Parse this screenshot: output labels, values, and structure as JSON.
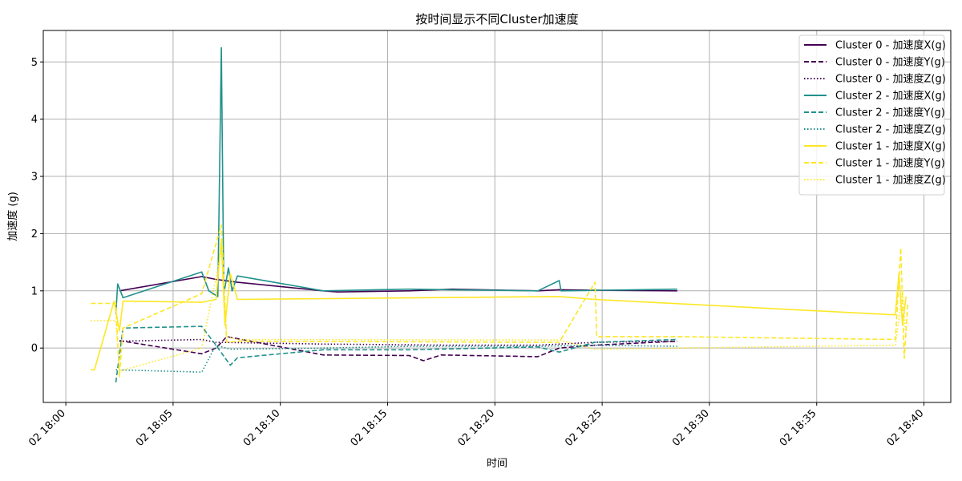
{
  "chart_data": {
    "type": "line",
    "title": "按时间显示不同Cluster加速度",
    "xlabel": "时间",
    "ylabel": "加速度 (g)",
    "xlim": [
      "02 18:00",
      "02 18:40"
    ],
    "ylim": [
      -0.95,
      5.55
    ],
    "x_ticks": [
      "02 18:00",
      "02 18:05",
      "02 18:10",
      "02 18:15",
      "02 18:20",
      "02 18:25",
      "02 18:30",
      "02 18:35",
      "02 18:40"
    ],
    "y_ticks": [
      0,
      1,
      2,
      3,
      4,
      5
    ],
    "grid": true,
    "legend_position": "top-right",
    "colors": {
      "cluster0": "#440154",
      "cluster2": "#21918c",
      "cluster1": "#fde725"
    },
    "series": [
      {
        "name": "Cluster 0 - 加速度X(g)",
        "color": "#440154",
        "dash": "solid",
        "points": [
          [
            "02 18:02:30",
            1.0
          ],
          [
            "02 18:06:20",
            1.25
          ],
          [
            "02 18:07:00",
            1.2
          ],
          [
            "02 18:08:00",
            1.15
          ],
          [
            "02 18:12:00",
            1.0
          ],
          [
            "02 18:12:40",
            0.98
          ],
          [
            "02 18:16:00",
            1.0
          ],
          [
            "02 18:18:00",
            1.03
          ],
          [
            "02 18:22:00",
            1.0
          ],
          [
            "02 18:23:00",
            1.02
          ],
          [
            "02 18:24:40",
            1.01
          ],
          [
            "02 18:28:30",
            1.0
          ]
        ]
      },
      {
        "name": "Cluster 0 - 加速度Y(g)",
        "color": "#440154",
        "dash": "dashed",
        "points": [
          [
            "02 18:02:30",
            0.13
          ],
          [
            "02 18:06:20",
            -0.1
          ],
          [
            "02 18:07:00",
            0.0
          ],
          [
            "02 18:07:30",
            0.2
          ],
          [
            "02 18:12:00",
            -0.12
          ],
          [
            "02 18:16:00",
            -0.13
          ],
          [
            "02 18:16:40",
            -0.22
          ],
          [
            "02 18:17:30",
            -0.12
          ],
          [
            "02 18:22:00",
            -0.15
          ],
          [
            "02 18:23:00",
            0.0
          ],
          [
            "02 18:24:40",
            0.05
          ],
          [
            "02 18:28:30",
            0.12
          ]
        ]
      },
      {
        "name": "Cluster 0 - 加速度Z(g)",
        "color": "#440154",
        "dash": "dotted",
        "points": [
          [
            "02 18:02:30",
            0.12
          ],
          [
            "02 18:06:20",
            0.15
          ],
          [
            "02 18:07:00",
            0.1
          ],
          [
            "02 18:12:00",
            0.07
          ],
          [
            "02 18:18:00",
            0.05
          ],
          [
            "02 18:22:00",
            0.05
          ],
          [
            "02 18:24:40",
            0.1
          ],
          [
            "02 18:28:30",
            0.12
          ]
        ]
      },
      {
        "name": "Cluster 2 - 加速度X(g)",
        "color": "#21918c",
        "dash": "solid",
        "points": [
          [
            "02 18:02:20",
            0.6
          ],
          [
            "02 18:02:25",
            1.12
          ],
          [
            "02 18:02:40",
            0.88
          ],
          [
            "02 18:06:20",
            1.33
          ],
          [
            "02 18:06:40",
            1.0
          ],
          [
            "02 18:07:05",
            0.9
          ],
          [
            "02 18:07:15",
            5.25
          ],
          [
            "02 18:07:22",
            0.95
          ],
          [
            "02 18:07:35",
            1.4
          ],
          [
            "02 18:07:45",
            1.0
          ],
          [
            "02 18:08:00",
            1.26
          ],
          [
            "02 18:12:00",
            1.0
          ],
          [
            "02 18:16:00",
            1.03
          ],
          [
            "02 18:18:00",
            1.02
          ],
          [
            "02 18:22:00",
            1.0
          ],
          [
            "02 18:23:00",
            1.18
          ],
          [
            "02 18:23:05",
            1.0
          ],
          [
            "02 18:28:30",
            1.03
          ]
        ]
      },
      {
        "name": "Cluster 2 - 加速度Y(g)",
        "color": "#21918c",
        "dash": "dashed",
        "points": [
          [
            "02 18:02:20",
            -0.6
          ],
          [
            "02 18:02:40",
            0.35
          ],
          [
            "02 18:06:20",
            0.38
          ],
          [
            "02 18:07:00",
            0.05
          ],
          [
            "02 18:07:40",
            -0.3
          ],
          [
            "02 18:08:00",
            -0.17
          ],
          [
            "02 18:12:00",
            -0.03
          ],
          [
            "02 18:16:00",
            -0.03
          ],
          [
            "02 18:22:00",
            0.02
          ],
          [
            "02 18:23:00",
            -0.07
          ],
          [
            "02 18:24:40",
            0.1
          ],
          [
            "02 18:28:30",
            0.15
          ]
        ]
      },
      {
        "name": "Cluster 2 - 加速度Z(g)",
        "color": "#21918c",
        "dash": "dotted",
        "points": [
          [
            "02 18:02:20",
            -0.38
          ],
          [
            "02 18:06:20",
            -0.42
          ],
          [
            "02 18:07:00",
            0.05
          ],
          [
            "02 18:07:40",
            -0.02
          ],
          [
            "02 18:12:00",
            0.0
          ],
          [
            "02 18:16:00",
            0.03
          ],
          [
            "02 18:22:00",
            0.03
          ],
          [
            "02 18:24:40",
            0.05
          ],
          [
            "02 18:28:30",
            0.03
          ]
        ]
      },
      {
        "name": "Cluster 1 - 加速度X(g)",
        "color": "#fde725",
        "dash": "solid",
        "points": [
          [
            "02 18:01:10",
            -0.38
          ],
          [
            "02 18:01:20",
            -0.38
          ],
          [
            "02 18:02:15",
            0.82
          ],
          [
            "02 18:02:30",
            0.3
          ],
          [
            "02 18:02:40",
            0.82
          ],
          [
            "02 18:06:20",
            0.8
          ],
          [
            "02 18:07:00",
            0.85
          ],
          [
            "02 18:07:15",
            1.9
          ],
          [
            "02 18:07:25",
            0.4
          ],
          [
            "02 18:07:40",
            1.3
          ],
          [
            "02 18:08:00",
            0.85
          ],
          [
            "02 18:23:00",
            0.9
          ],
          [
            "02 18:24:40",
            0.85
          ],
          [
            "02 18:38:40",
            0.58
          ],
          [
            "02 18:38:50",
            1.3
          ],
          [
            "02 18:39:00",
            0.4
          ],
          [
            "02 18:39:10",
            0.9
          ]
        ]
      },
      {
        "name": "Cluster 1 - 加速度Y(g)",
        "color": "#fde725",
        "dash": "dashed",
        "points": [
          [
            "02 18:01:10",
            0.78
          ],
          [
            "02 18:02:20",
            0.78
          ],
          [
            "02 18:02:30",
            -0.5
          ],
          [
            "02 18:02:40",
            0.35
          ],
          [
            "02 18:06:20",
            0.95
          ],
          [
            "02 18:07:15",
            2.15
          ],
          [
            "02 18:07:30",
            0.1
          ],
          [
            "02 18:08:00",
            0.12
          ],
          [
            "02 18:23:00",
            0.1
          ],
          [
            "02 18:24:40",
            1.15
          ],
          [
            "02 18:24:45",
            0.2
          ],
          [
            "02 18:28:30",
            0.2
          ],
          [
            "02 18:38:40",
            0.15
          ],
          [
            "02 18:38:55",
            1.75
          ],
          [
            "02 18:39:05",
            -0.18
          ],
          [
            "02 18:39:15",
            0.8
          ]
        ]
      },
      {
        "name": "Cluster 1 - 加速度Z(g)",
        "color": "#fde725",
        "dash": "dotted",
        "points": [
          [
            "02 18:01:10",
            0.48
          ],
          [
            "02 18:02:20",
            0.48
          ],
          [
            "02 18:02:30",
            -0.4
          ],
          [
            "02 18:03:00",
            -0.35
          ],
          [
            "02 18:06:20",
            0.0
          ],
          [
            "02 18:07:15",
            1.7
          ],
          [
            "02 18:07:30",
            0.2
          ],
          [
            "02 18:08:00",
            0.15
          ],
          [
            "02 18:23:00",
            0.14
          ],
          [
            "02 18:24:40",
            -0.02
          ],
          [
            "02 18:28:30",
            0.0
          ],
          [
            "02 18:38:40",
            0.05
          ],
          [
            "02 18:39:00",
            1.0
          ],
          [
            "02 18:39:10",
            0.2
          ]
        ]
      }
    ]
  }
}
